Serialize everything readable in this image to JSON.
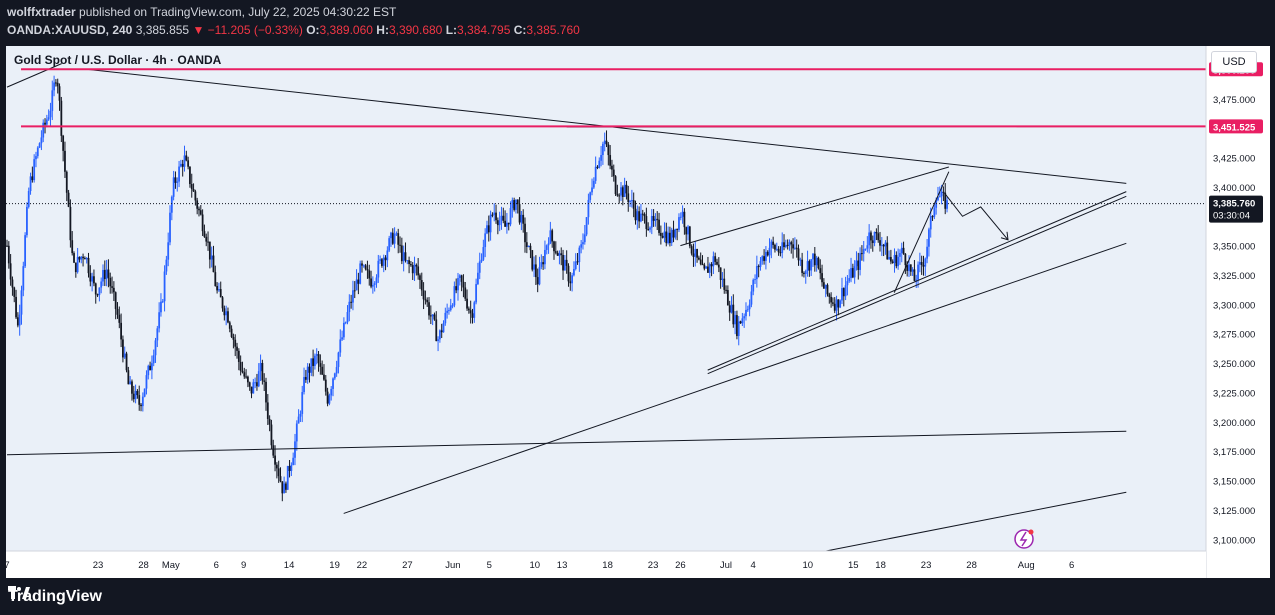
{
  "header": {
    "publisher": "wolffxtrader",
    "published_text": "published on TradingView.com, July 22, 2025 04:30:22 EST",
    "symbol": "OANDA:XAUUSD, 240",
    "last": "3,385.855",
    "change_arrow": "▼",
    "change": "−11.205 (−0.33%)",
    "o_label": "O:",
    "o": "3,389.060",
    "h_label": "H:",
    "h": "3,390.680",
    "l_label": "L:",
    "l": "3,384.795",
    "c_label": "C:",
    "c": "3,385.760"
  },
  "chart_title": "Gold Spot / U.S. Dollar · 4h · OANDA",
  "currency_button": "USD",
  "footer": {
    "brand": "TradingView"
  },
  "colors": {
    "background": "#ffffff",
    "frame": "#131722",
    "up": "#2962ff",
    "down": "#131722",
    "level": "#e91e63",
    "text": "#131722"
  },
  "chart_data": {
    "type": "candlestick",
    "title": "Gold Spot / U.S. Dollar · 4h · OANDA",
    "ylim": [
      3090,
      3520
    ],
    "yticks": [
      3100,
      3125,
      3150,
      3175,
      3200,
      3225,
      3250,
      3275,
      3300,
      3325,
      3350,
      3375,
      3400,
      3425,
      3450,
      3475
    ],
    "ytick_labels": [
      "3,100.000",
      "3,125.000",
      "3,150.000",
      "3,175.000",
      "3,200.000",
      "3,225.000",
      "3,250.000",
      "3,275.000",
      "3,300.000",
      "3,325.000",
      "3,350.000",
      "3,375.000",
      "3,400.000",
      "3,425.000",
      "3,450.000",
      "3,475.000"
    ],
    "xticks": [
      {
        "d": 0,
        "label": "7"
      },
      {
        "d": 10,
        "label": "23"
      },
      {
        "d": 15,
        "label": "28"
      },
      {
        "d": 18,
        "label": "May"
      },
      {
        "d": 23,
        "label": "6"
      },
      {
        "d": 26,
        "label": "9"
      },
      {
        "d": 31,
        "label": "14"
      },
      {
        "d": 36,
        "label": "19"
      },
      {
        "d": 39,
        "label": "22"
      },
      {
        "d": 44,
        "label": "27"
      },
      {
        "d": 49,
        "label": "Jun"
      },
      {
        "d": 53,
        "label": "5"
      },
      {
        "d": 58,
        "label": "10"
      },
      {
        "d": 61,
        "label": "13"
      },
      {
        "d": 66,
        "label": "18"
      },
      {
        "d": 71,
        "label": "23"
      },
      {
        "d": 74,
        "label": "26"
      },
      {
        "d": 79,
        "label": "Jul"
      },
      {
        "d": 82,
        "label": "4"
      },
      {
        "d": 88,
        "label": "10"
      },
      {
        "d": 93,
        "label": "15"
      },
      {
        "d": 96,
        "label": "18"
      },
      {
        "d": 101,
        "label": "23"
      },
      {
        "d": 106,
        "label": "28"
      },
      {
        "d": 112,
        "label": "Aug"
      },
      {
        "d": 117,
        "label": "6"
      }
    ],
    "price_levels": [
      {
        "price": 3500.2,
        "label": "3,500.200",
        "color": "#e91e63"
      },
      {
        "price": 3451.525,
        "label": "3,451.525",
        "color": "#e91e63"
      }
    ],
    "last_price": {
      "price": 3385.76,
      "label": "3,385.760",
      "countdown": "03:30:04"
    },
    "path": [
      [
        0,
        3350
      ],
      [
        2,
        3280
      ],
      [
        4,
        3400
      ],
      [
        6,
        3440
      ],
      [
        8,
        3470
      ],
      [
        9,
        3500
      ],
      [
        10,
        3440
      ],
      [
        12,
        3330
      ],
      [
        14,
        3345
      ],
      [
        16,
        3310
      ],
      [
        18,
        3330
      ],
      [
        20,
        3290
      ],
      [
        22,
        3230
      ],
      [
        24,
        3215
      ],
      [
        26,
        3250
      ],
      [
        28,
        3300
      ],
      [
        30,
        3400
      ],
      [
        32,
        3425
      ],
      [
        34,
        3390
      ],
      [
        36,
        3360
      ],
      [
        38,
        3310
      ],
      [
        40,
        3290
      ],
      [
        42,
        3250
      ],
      [
        44,
        3225
      ],
      [
        46,
        3245
      ],
      [
        48,
        3180
      ],
      [
        50,
        3140
      ],
      [
        52,
        3180
      ],
      [
        54,
        3240
      ],
      [
        56,
        3255
      ],
      [
        58,
        3220
      ],
      [
        60,
        3260
      ],
      [
        62,
        3300
      ],
      [
        64,
        3330
      ],
      [
        66,
        3320
      ],
      [
        68,
        3340
      ],
      [
        70,
        3360
      ],
      [
        72,
        3335
      ],
      [
        74,
        3330
      ],
      [
        76,
        3300
      ],
      [
        78,
        3270
      ],
      [
        80,
        3300
      ],
      [
        82,
        3320
      ],
      [
        84,
        3290
      ],
      [
        86,
        3350
      ],
      [
        88,
        3380
      ],
      [
        90,
        3365
      ],
      [
        92,
        3390
      ],
      [
        94,
        3350
      ],
      [
        96,
        3320
      ],
      [
        98,
        3360
      ],
      [
        100,
        3340
      ],
      [
        102,
        3320
      ],
      [
        104,
        3350
      ],
      [
        106,
        3410
      ],
      [
        108,
        3440
      ],
      [
        110,
        3400
      ],
      [
        112,
        3395
      ],
      [
        114,
        3375
      ],
      [
        116,
        3370
      ],
      [
        118,
        3365
      ],
      [
        120,
        3355
      ],
      [
        122,
        3380
      ],
      [
        124,
        3345
      ],
      [
        126,
        3325
      ],
      [
        128,
        3340
      ],
      [
        130,
        3310
      ],
      [
        132,
        3280
      ],
      [
        134,
        3300
      ],
      [
        136,
        3335
      ],
      [
        138,
        3350
      ],
      [
        140,
        3345
      ],
      [
        142,
        3355
      ],
      [
        144,
        3330
      ],
      [
        146,
        3340
      ],
      [
        148,
        3310
      ],
      [
        150,
        3300
      ],
      [
        152,
        3320
      ],
      [
        154,
        3335
      ],
      [
        156,
        3360
      ],
      [
        158,
        3355
      ],
      [
        160,
        3335
      ],
      [
        162,
        3345
      ],
      [
        164,
        3320
      ],
      [
        166,
        3340
      ],
      [
        168,
        3395
      ],
      [
        170,
        3385
      ]
    ],
    "trendlines": [
      {
        "x1": 9,
        "y1": 3500,
        "x2": 123,
        "y2": 3403
      },
      {
        "x1": 61.5,
        "y1": 3451,
        "x2": 123,
        "y2": 3451.5
      },
      {
        "x1": 0,
        "y1": 3172,
        "x2": 123,
        "y2": 3192
      },
      {
        "x1": 37,
        "y1": 3122,
        "x2": 123,
        "y2": 3352
      },
      {
        "x1": 77,
        "y1": 3241,
        "x2": 123,
        "y2": 3392
      },
      {
        "x1": 77,
        "y1": 3244,
        "x2": 123,
        "y2": 3396
      },
      {
        "x1": 74,
        "y1": 3350,
        "x2": 103.5,
        "y2": 3417
      },
      {
        "x1": 97.5,
        "y1": 3310,
        "x2": 103.5,
        "y2": 3413
      },
      {
        "x1": 90,
        "y1": 3090,
        "x2": 123,
        "y2": 3140
      },
      {
        "x1": 0,
        "y1": 3485,
        "x2": 6,
        "y2": 3505
      }
    ],
    "projection": [
      [
        103,
        3395
      ],
      [
        105,
        3375
      ],
      [
        107,
        3383
      ],
      [
        110,
        3355
      ]
    ],
    "grid": false
  }
}
